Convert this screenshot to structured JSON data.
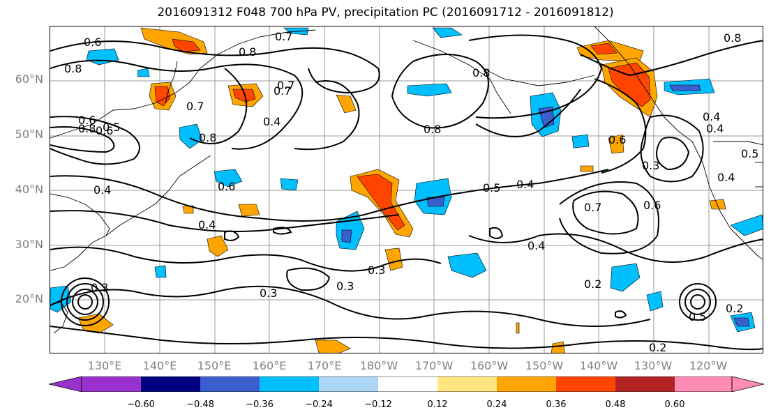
{
  "title": "2016091312 F048 700 hPa PV, precipitation PC (2016091712 - 2016091812)",
  "lat_labels": [
    "60°N",
    "50°N",
    "40°N",
    "30°N",
    "20°N"
  ],
  "lon_labels": [
    "130°E",
    "140°E",
    "150°E",
    "160°E",
    "170°E",
    "180°W",
    "170°W",
    "160°W",
    "150°W",
    "140°W",
    "130°W",
    "120°W"
  ],
  "contour_labels": [
    "0.6",
    "0.8",
    "0.7",
    "0.8",
    "0.8",
    "0.7",
    "0.8",
    "0.4",
    "0.5",
    "0.6",
    "0.8",
    "0.7",
    "0.4",
    "0.4",
    "0.8",
    "0.3",
    "0.5",
    "0.4",
    "0.6",
    "0.4",
    "0.3",
    "0.3",
    "0.3",
    "0.4",
    "0.7",
    "0.6",
    "0.4",
    "0.2",
    "0.2",
    "0.3",
    "0.4",
    "0.5",
    "0.2",
    "0.7",
    "0.5",
    "0.6",
    "0.6",
    "0.8"
  ],
  "colorbar": {
    "ticks": [
      "−0.60",
      "−0.48",
      "−0.36",
      "−0.24",
      "−0.12",
      "0.12",
      "0.24",
      "0.36",
      "0.48",
      "0.60"
    ],
    "colors": [
      "#9932cc",
      "#000080",
      "#3a5fcd",
      "#00bfff",
      "#add8f5",
      "#ffffff",
      "#ffe680",
      "#ffa500",
      "#ff4500",
      "#b22222",
      "#ff8cb4"
    ]
  },
  "palette": {
    "frame": "#000000",
    "grid": "#9a9a9a",
    "axis_text": "#808080"
  }
}
